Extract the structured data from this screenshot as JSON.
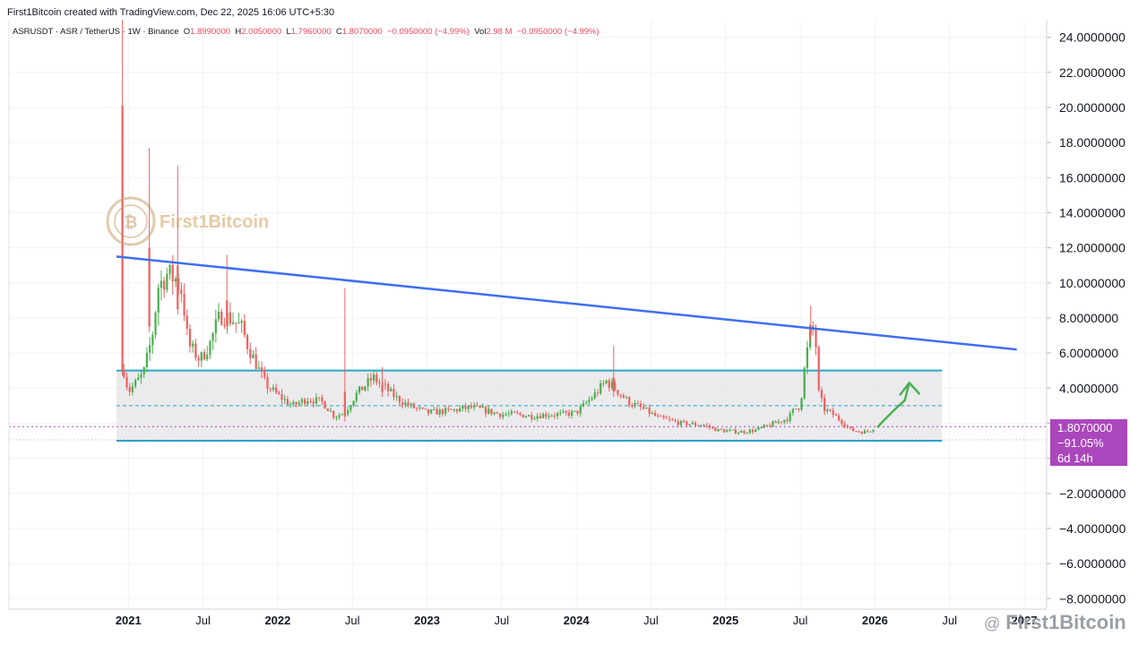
{
  "header": {
    "credit": "First1Bitcoin created with TradingView.com, Dec 22, 2025 16:06 UTC+5:30",
    "symbol": "ASRUSDT · ASR / TetherUS · 1W · Binance",
    "o_label": "O",
    "o": "1.8990000",
    "h_label": "H",
    "h": "2.0050000",
    "l_label": "L",
    "l": "1.7960000",
    "c_label": "C",
    "c": "1.8070000",
    "change": "−0.0950000 (−4.99%)",
    "vol_label": "Vol",
    "vol": "2.98 M",
    "vol_change": "−0.0950000 (−4.99%)"
  },
  "price_tag": {
    "price": "1.8070000",
    "percent": "−91.05%",
    "countdown": "6d 14h"
  },
  "watermark": {
    "text": "First1Bitcoin"
  },
  "brand": {
    "at": "@",
    "name": "First1Bitcoin"
  },
  "colors": {
    "up": "#4caf50",
    "down": "#f06060",
    "trend": "#3d6ff0",
    "range": "#26a6c6",
    "tag": "#ab47bc"
  },
  "chart_data": {
    "type": "candlestick",
    "y_tick_labels": [
      "24.0000000",
      "22.0000000",
      "20.0000000",
      "18.0000000",
      "16.0000000",
      "14.0000000",
      "12.0000000",
      "10.0000000",
      "8.0000000",
      "6.0000000",
      "4.0000000",
      "",
      "",
      "−2.0000000",
      "−4.0000000",
      "−6.0000000",
      "−8.0000000"
    ],
    "y_tick_values": [
      24,
      22,
      20,
      18,
      16,
      14,
      12,
      10,
      8,
      6,
      4,
      2,
      0,
      -2,
      -4,
      -6,
      -8
    ],
    "ylim": [
      -8.6,
      25
    ],
    "x_tick_labels": [
      "2021",
      "Jul",
      "2022",
      "Jul",
      "2023",
      "Jul",
      "2024",
      "Jul",
      "2025",
      "Jul",
      "2026",
      "Jul",
      "2027"
    ],
    "x_tick_values": [
      2021.0,
      2021.5,
      2022.0,
      2022.5,
      2023.0,
      2023.5,
      2024.0,
      2024.5,
      2025.0,
      2025.5,
      2026.0,
      2026.5,
      2027.0
    ],
    "xlim": [
      2020.2,
      2027.15
    ],
    "key_points": [
      [
        2020.97,
        5.0
      ],
      [
        2021.0,
        3.8
      ],
      [
        2021.1,
        4.8
      ],
      [
        2021.16,
        7.0
      ],
      [
        2021.2,
        9.8
      ],
      [
        2021.26,
        10.5
      ],
      [
        2021.32,
        10.2
      ],
      [
        2021.36,
        9.5
      ],
      [
        2021.4,
        6.5
      ],
      [
        2021.48,
        5.6
      ],
      [
        2021.55,
        6.6
      ],
      [
        2021.58,
        7.4
      ],
      [
        2021.62,
        8.2
      ],
      [
        2021.7,
        7.9
      ],
      [
        2021.76,
        7.4
      ],
      [
        2021.8,
        6.4
      ],
      [
        2021.86,
        5.3
      ],
      [
        2021.92,
        4.2
      ],
      [
        2022.0,
        3.6
      ],
      [
        2022.1,
        3.0
      ],
      [
        2022.2,
        3.4
      ],
      [
        2022.3,
        3.2
      ],
      [
        2022.38,
        2.4
      ],
      [
        2022.45,
        2.6
      ],
      [
        2022.52,
        3.6
      ],
      [
        2022.58,
        4.1
      ],
      [
        2022.64,
        4.6
      ],
      [
        2022.72,
        4.0
      ],
      [
        2022.8,
        3.4
      ],
      [
        2022.88,
        3.0
      ],
      [
        2023.0,
        2.6
      ],
      [
        2023.15,
        2.7
      ],
      [
        2023.3,
        2.9
      ],
      [
        2023.4,
        2.7
      ],
      [
        2023.5,
        2.5
      ],
      [
        2023.6,
        2.5
      ],
      [
        2023.7,
        2.4
      ],
      [
        2023.8,
        2.5
      ],
      [
        2023.9,
        2.5
      ],
      [
        2024.0,
        2.6
      ],
      [
        2024.06,
        3.1
      ],
      [
        2024.12,
        3.6
      ],
      [
        2024.2,
        4.4
      ],
      [
        2024.27,
        3.9
      ],
      [
        2024.35,
        3.2
      ],
      [
        2024.45,
        2.8
      ],
      [
        2024.55,
        2.3
      ],
      [
        2024.7,
        2.0
      ],
      [
        2024.85,
        1.9
      ],
      [
        2024.95,
        1.6
      ],
      [
        2025.1,
        1.5
      ],
      [
        2025.2,
        1.6
      ],
      [
        2025.3,
        1.9
      ],
      [
        2025.42,
        2.3
      ],
      [
        2025.46,
        2.8
      ],
      [
        2025.5,
        3.0
      ],
      [
        2025.53,
        5.2
      ],
      [
        2025.57,
        7.4
      ],
      [
        2025.6,
        7.2
      ],
      [
        2025.62,
        3.8
      ],
      [
        2025.66,
        2.8
      ],
      [
        2025.72,
        2.5
      ],
      [
        2025.78,
        2.1
      ],
      [
        2025.84,
        1.6
      ],
      [
        2025.92,
        1.5
      ],
      [
        2025.96,
        1.55
      ],
      [
        2026.0,
        1.8
      ]
    ],
    "spikes": [
      [
        2020.96,
        25.0,
        20.1,
        5.0
      ],
      [
        2021.14,
        17.7,
        12.0,
        7.5
      ],
      [
        2021.33,
        16.7,
        11.0,
        8.5
      ],
      [
        2021.66,
        11.6,
        9.0,
        7.6
      ],
      [
        2022.45,
        9.7,
        3.8,
        2.4
      ],
      [
        2022.7,
        5.2,
        4.2,
        3.8
      ],
      [
        2024.25,
        6.4,
        4.6,
        3.8
      ],
      [
        2025.57,
        8.7,
        7.5,
        7.0
      ]
    ],
    "trendline": [
      [
        2020.92,
        11.5
      ],
      [
        2026.95,
        6.2
      ]
    ],
    "range_box": {
      "x": [
        2020.92,
        2026.45
      ],
      "top": 5.0,
      "bottom": 1.0,
      "mid": 3.0
    },
    "current_price_line": 1.807,
    "arrow": [
      [
        2026.02,
        1.8
      ],
      [
        2026.12,
        2.2
      ],
      [
        2026.2,
        3.3
      ],
      [
        2026.23,
        4.3
      ]
    ]
  }
}
